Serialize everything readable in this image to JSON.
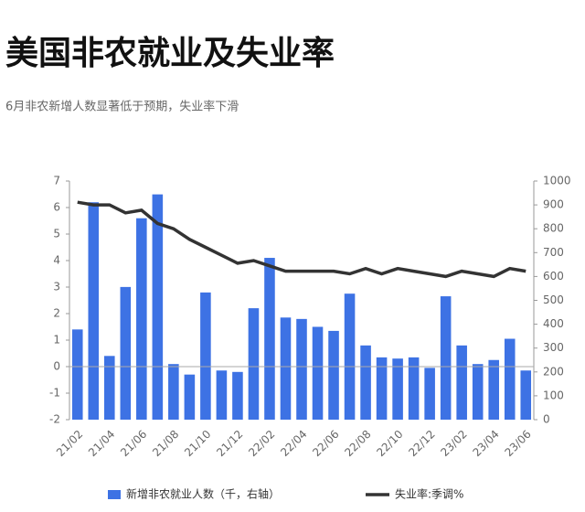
{
  "chart_data": {
    "type": "bar-line",
    "title": "美国非农就业及失业率",
    "subtitle": "6月非农新增人数显著低于预期，失业率下滑",
    "categories": [
      "21/02",
      null,
      "21/04",
      null,
      "21/06",
      null,
      "21/08",
      null,
      "21/10",
      null,
      "21/12",
      null,
      "22/02",
      null,
      "22/04",
      null,
      "22/06",
      null,
      "22/08",
      null,
      "22/10",
      null,
      "22/12",
      null,
      "23/02",
      null,
      "23/04",
      null,
      "23/06"
    ],
    "series": [
      {
        "name": "新增非农就业人数（千，右轴）",
        "type": "bar",
        "axis": "y2",
        "color": "#3d72e4",
        "values": [
          378,
          911,
          267,
          556,
          844,
          944,
          233,
          189,
          533,
          206,
          200,
          467,
          678,
          428,
          422,
          389,
          372,
          528,
          311,
          261,
          256,
          261,
          217,
          517,
          311,
          233,
          250,
          339,
          206
        ]
      },
      {
        "name": "失业率:季调%",
        "type": "line",
        "axis": "y",
        "color": "#333333",
        "values": [
          6.2,
          6.1,
          6.1,
          5.8,
          5.9,
          5.4,
          5.2,
          4.8,
          4.5,
          4.2,
          3.9,
          4.0,
          3.8,
          3.6,
          3.6,
          3.6,
          3.6,
          3.5,
          3.7,
          3.5,
          3.7,
          3.6,
          3.5,
          3.4,
          3.6,
          3.5,
          3.4,
          3.7,
          3.6
        ]
      }
    ],
    "ylim": [
      -2,
      7
    ],
    "yticks": [
      -2,
      -1,
      0,
      1,
      2,
      3,
      4,
      5,
      6,
      7
    ],
    "y2lim": [
      0,
      1000
    ],
    "y2ticks": [
      0,
      100,
      200,
      300,
      400,
      500,
      600,
      700,
      800,
      900,
      1000
    ]
  }
}
